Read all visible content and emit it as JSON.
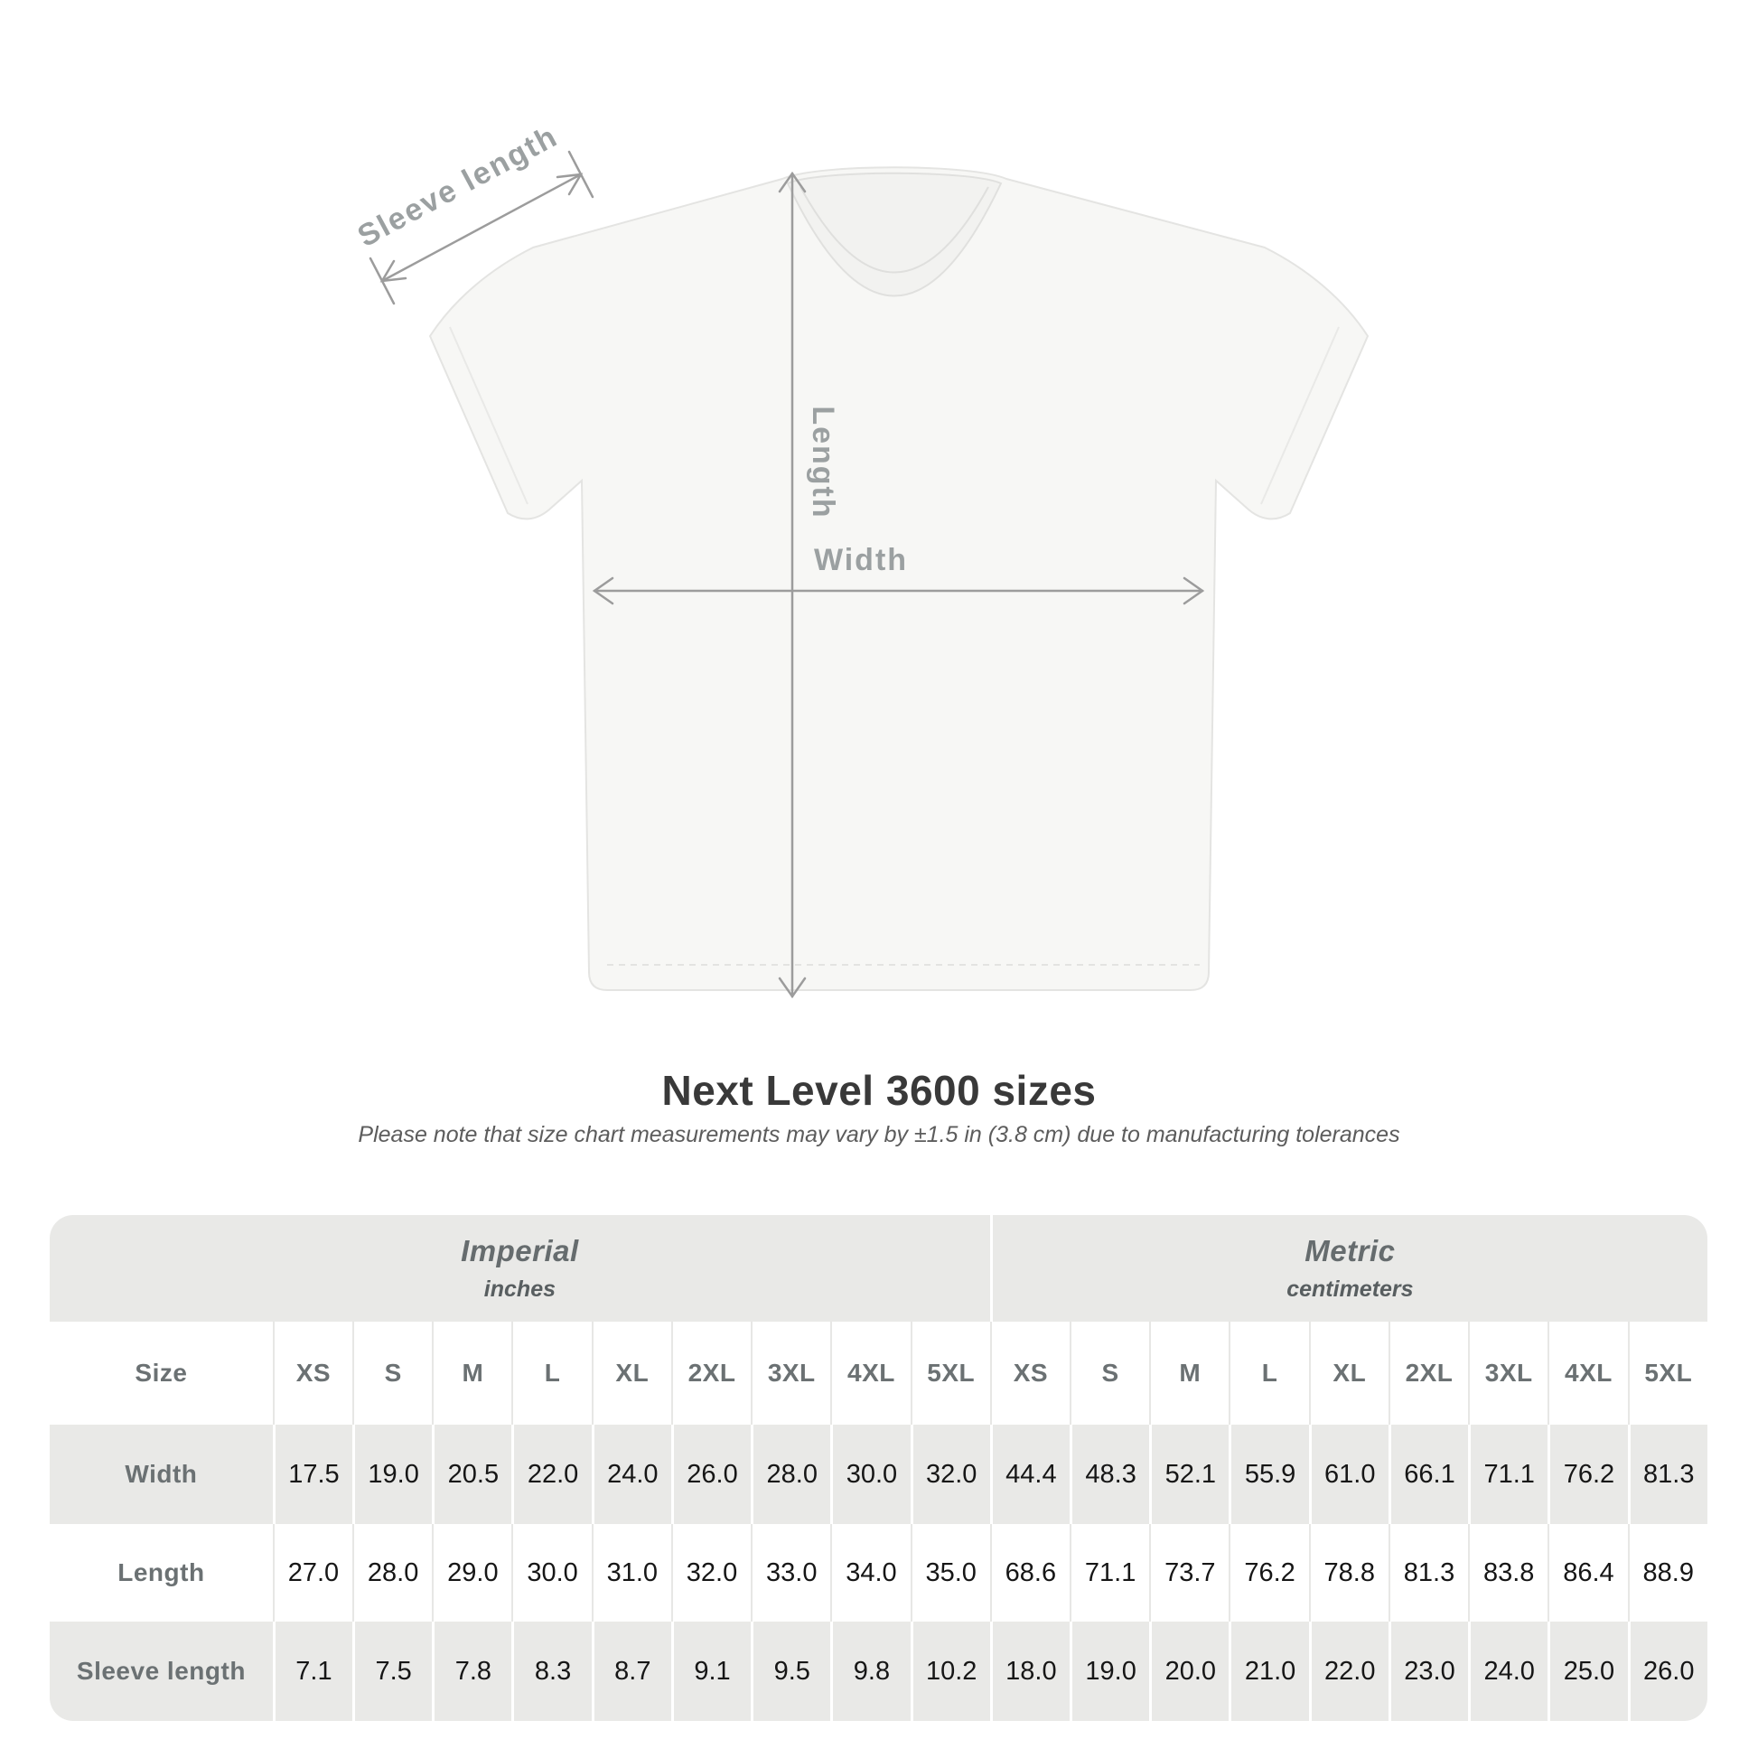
{
  "diagram": {
    "labels": {
      "sleeve_length": "Sleeve length",
      "length": "Length",
      "width": "Width"
    }
  },
  "title": "Next Level 3600 sizes",
  "subtitle": "Please note that size chart measurements may vary by ±1.5 in (3.8 cm) due to manufacturing tolerances",
  "chart_data": {
    "type": "table",
    "groups": [
      {
        "name": "Imperial",
        "unit": "inches"
      },
      {
        "name": "Metric",
        "unit": "centimeters"
      }
    ],
    "size_label": "Size",
    "sizes": [
      "XS",
      "S",
      "M",
      "L",
      "XL",
      "2XL",
      "3XL",
      "4XL",
      "5XL"
    ],
    "rows": [
      {
        "label": "Width",
        "imperial": [
          "17.5",
          "19.0",
          "20.5",
          "22.0",
          "24.0",
          "26.0",
          "28.0",
          "30.0",
          "32.0"
        ],
        "metric": [
          "44.4",
          "48.3",
          "52.1",
          "55.9",
          "61.0",
          "66.1",
          "71.1",
          "76.2",
          "81.3"
        ]
      },
      {
        "label": "Length",
        "imperial": [
          "27.0",
          "28.0",
          "29.0",
          "30.0",
          "31.0",
          "32.0",
          "33.0",
          "34.0",
          "35.0"
        ],
        "metric": [
          "68.6",
          "71.1",
          "73.7",
          "76.2",
          "78.8",
          "81.3",
          "83.8",
          "86.4",
          "88.9"
        ]
      },
      {
        "label": "Sleeve length",
        "imperial": [
          "7.1",
          "7.5",
          "7.8",
          "8.3",
          "8.7",
          "9.1",
          "9.5",
          "9.8",
          "10.2"
        ],
        "metric": [
          "18.0",
          "19.0",
          "20.0",
          "21.0",
          "22.0",
          "23.0",
          "24.0",
          "25.0",
          "26.0"
        ]
      }
    ]
  }
}
